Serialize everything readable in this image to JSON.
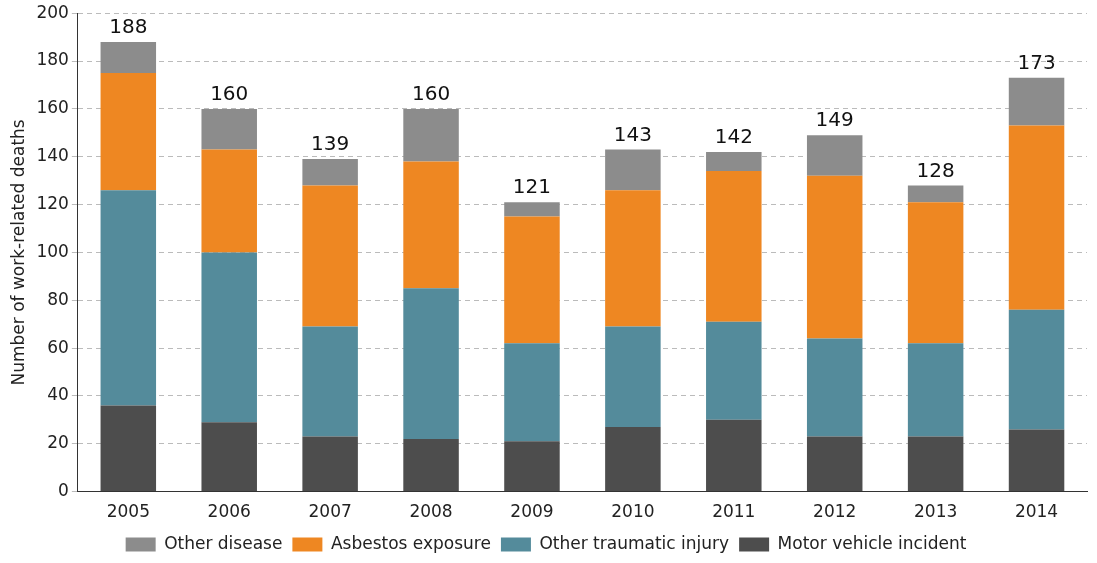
{
  "chart_data": {
    "type": "bar",
    "stacked": true,
    "ylabel": "Number of work-related deaths",
    "categories": [
      "2005",
      "2006",
      "2007",
      "2008",
      "2009",
      "2010",
      "2011",
      "2012",
      "2013",
      "2014"
    ],
    "series": [
      {
        "name": "Motor vehicle incident",
        "color": "#4d4d4d",
        "values": [
          36,
          29,
          23,
          22,
          21,
          27,
          30,
          23,
          23,
          26
        ]
      },
      {
        "name": "Other traumatic injury",
        "color": "#548b9b",
        "values": [
          90,
          71,
          46,
          63,
          41,
          42,
          41,
          41,
          39,
          50
        ]
      },
      {
        "name": "Asbestos exposure",
        "color": "#ee8722",
        "values": [
          49,
          43,
          59,
          53,
          53,
          57,
          63,
          68,
          59,
          77
        ]
      },
      {
        "name": "Other disease",
        "color": "#8c8c8c",
        "values": [
          13,
          17,
          11,
          22,
          6,
          17,
          8,
          17,
          7,
          20
        ]
      }
    ],
    "totals": [
      "188",
      "160",
      "139",
      "160",
      "121",
      "143",
      "142",
      "149",
      "128",
      "173"
    ],
    "ylim": [
      0,
      200
    ],
    "yticks": [
      0,
      20,
      40,
      60,
      80,
      100,
      120,
      140,
      160,
      180,
      200
    ],
    "grid": "y",
    "legend": "bottom"
  }
}
